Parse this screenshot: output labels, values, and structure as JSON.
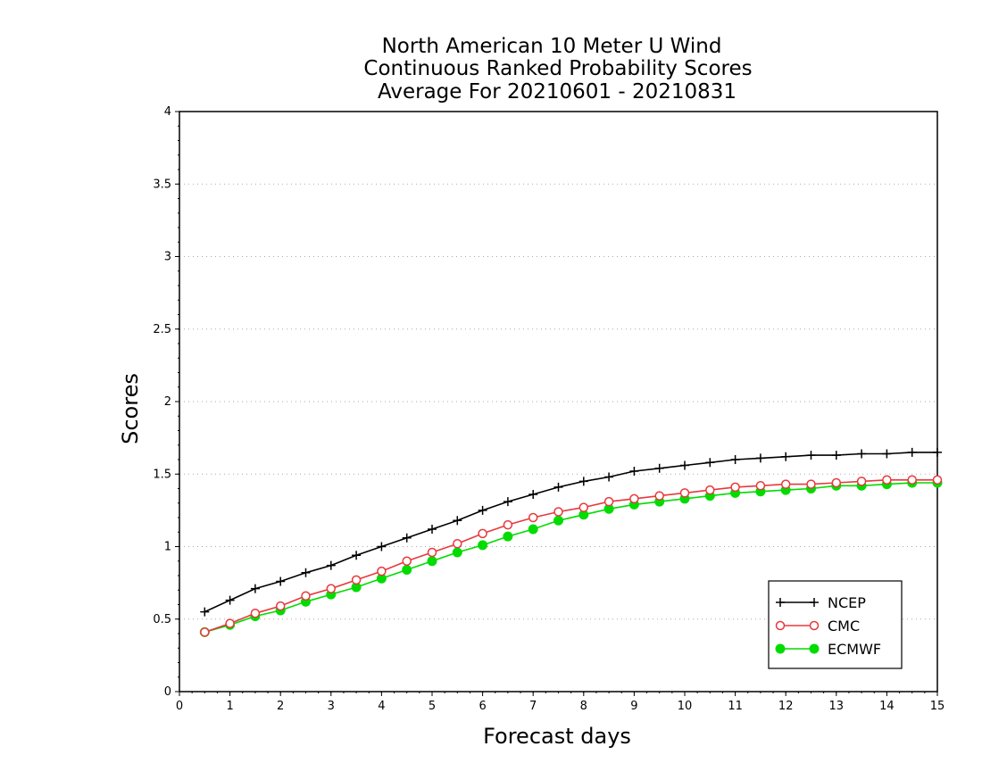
{
  "chart_data": {
    "type": "line",
    "title_lines": [
      "North American 10 Meter U Wind",
      "Continuous Ranked Probability Scores",
      "Average For 20210601 - 20210831"
    ],
    "xlabel": "Forecast days",
    "ylabel": "Scores",
    "xlim": [
      0,
      15
    ],
    "ylim": [
      0,
      4
    ],
    "x_ticks": [
      "0",
      "1",
      "2",
      "3",
      "4",
      "5",
      "6",
      "7",
      "8",
      "9",
      "10",
      "11",
      "12",
      "13",
      "14",
      "15"
    ],
    "y_ticks": [
      "0",
      "0.5",
      "1",
      "1.5",
      "2",
      "2.5",
      "3",
      "3.5",
      "4"
    ],
    "grid": "horizontal dotted",
    "legend_position": "bottom-right",
    "x": [
      0.5,
      1,
      1.5,
      2,
      2.5,
      3,
      3.5,
      4,
      4.5,
      5,
      5.5,
      6,
      6.5,
      7,
      7.5,
      8,
      8.5,
      9,
      9.5,
      10,
      10.5,
      11,
      11.5,
      12,
      12.5,
      13,
      13.5,
      14,
      14.5,
      15
    ],
    "series": [
      {
        "name": "NCEP",
        "color": "#000000",
        "marker": "plus",
        "values": [
          0.55,
          0.63,
          0.71,
          0.76,
          0.82,
          0.87,
          0.94,
          1.0,
          1.06,
          1.12,
          1.18,
          1.25,
          1.31,
          1.36,
          1.41,
          1.45,
          1.48,
          1.52,
          1.54,
          1.56,
          1.58,
          1.6,
          1.61,
          1.62,
          1.63,
          1.63,
          1.64,
          1.64,
          1.65,
          1.65
        ]
      },
      {
        "name": "CMC",
        "color": "#e8383d",
        "marker": "open-circle",
        "values": [
          0.41,
          0.47,
          0.54,
          0.59,
          0.66,
          0.71,
          0.77,
          0.83,
          0.9,
          0.96,
          1.02,
          1.09,
          1.15,
          1.2,
          1.24,
          1.27,
          1.31,
          1.33,
          1.35,
          1.37,
          1.39,
          1.41,
          1.42,
          1.43,
          1.43,
          1.44,
          1.45,
          1.46,
          1.46,
          1.46
        ]
      },
      {
        "name": "ECMWF",
        "color": "#00dc00",
        "marker": "filled-circle",
        "values": [
          0.41,
          0.46,
          0.52,
          0.56,
          0.62,
          0.67,
          0.72,
          0.78,
          0.84,
          0.9,
          0.96,
          1.01,
          1.07,
          1.12,
          1.18,
          1.22,
          1.26,
          1.29,
          1.31,
          1.33,
          1.35,
          1.37,
          1.38,
          1.39,
          1.4,
          1.42,
          1.42,
          1.43,
          1.44,
          1.44
        ]
      }
    ]
  }
}
